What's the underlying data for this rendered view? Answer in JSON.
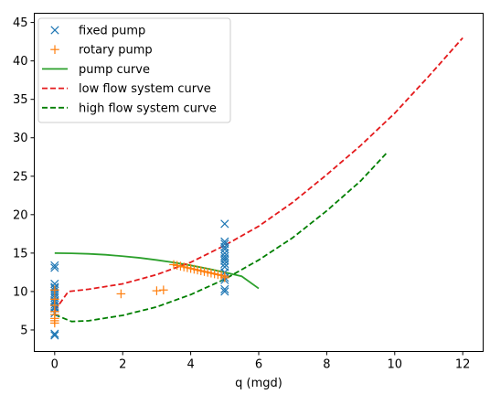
{
  "chart_data": {
    "type": "scatter",
    "title": "",
    "xlabel": "q (mgd)",
    "ylabel": "",
    "xlim": [
      -0.6,
      12.6
    ],
    "ylim": [
      2.2,
      46.2
    ],
    "xticks": [
      0,
      2,
      4,
      6,
      8,
      10,
      12
    ],
    "yticks": [
      5,
      10,
      15,
      20,
      25,
      30,
      35,
      40,
      45
    ],
    "grid": false,
    "legend_position": "top-left",
    "series": [
      {
        "name": "fixed pump",
        "kind": "scatter",
        "marker": "x",
        "color": "#1f77b4",
        "points": [
          [
            0,
            4.3
          ],
          [
            0,
            4.5
          ],
          [
            0,
            7.2
          ],
          [
            0,
            7.8
          ],
          [
            0,
            8.0
          ],
          [
            0,
            8.3
          ],
          [
            0,
            8.6
          ],
          [
            0,
            8.8
          ],
          [
            0,
            9.2
          ],
          [
            0,
            9.5
          ],
          [
            0,
            9.8
          ],
          [
            0,
            10.1
          ],
          [
            0,
            10.4
          ],
          [
            0,
            10.6
          ],
          [
            0,
            11.0
          ],
          [
            0,
            13.1
          ],
          [
            0,
            13.4
          ],
          [
            5,
            10.0
          ],
          [
            5,
            10.3
          ],
          [
            5,
            11.5
          ],
          [
            5,
            11.8
          ],
          [
            5,
            12.5
          ],
          [
            5,
            13.2
          ],
          [
            5,
            13.6
          ],
          [
            5,
            14.0
          ],
          [
            5,
            14.3
          ],
          [
            5,
            14.6
          ],
          [
            5,
            15.0
          ],
          [
            5,
            15.5
          ],
          [
            5,
            15.8
          ],
          [
            5,
            16.2
          ],
          [
            5,
            16.5
          ],
          [
            5,
            18.8
          ]
        ]
      },
      {
        "name": "rotary pump",
        "kind": "scatter",
        "marker": "+",
        "color": "#ff7f0e",
        "points": [
          [
            0,
            5.9
          ],
          [
            0,
            6.2
          ],
          [
            0,
            6.5
          ],
          [
            0,
            7.0
          ],
          [
            0,
            7.4
          ],
          [
            0,
            8.2
          ],
          [
            0,
            9.0
          ],
          [
            0,
            10.2
          ],
          [
            1.95,
            9.7
          ],
          [
            3.0,
            10.1
          ],
          [
            3.2,
            10.2
          ],
          [
            3.5,
            13.5
          ],
          [
            3.6,
            13.4
          ],
          [
            3.7,
            13.3
          ],
          [
            3.8,
            13.2
          ],
          [
            3.9,
            13.1
          ],
          [
            4.0,
            13.0
          ],
          [
            4.1,
            12.9
          ],
          [
            4.2,
            12.8
          ],
          [
            4.3,
            12.7
          ],
          [
            4.4,
            12.6
          ],
          [
            4.5,
            12.5
          ],
          [
            4.6,
            12.4
          ],
          [
            4.7,
            12.3
          ],
          [
            4.8,
            12.2
          ],
          [
            4.9,
            12.1
          ],
          [
            5.0,
            12.0
          ],
          [
            5.0,
            11.8
          ]
        ]
      },
      {
        "name": "pump curve",
        "kind": "line",
        "style": "solid",
        "color": "#2ca02c",
        "points": [
          [
            0,
            15.0
          ],
          [
            0.5,
            14.97
          ],
          [
            1,
            14.9
          ],
          [
            1.5,
            14.78
          ],
          [
            2,
            14.6
          ],
          [
            2.5,
            14.38
          ],
          [
            3,
            14.1
          ],
          [
            3.5,
            13.78
          ],
          [
            4,
            13.4
          ],
          [
            4.5,
            12.98
          ],
          [
            5,
            12.5
          ],
          [
            5.5,
            11.98
          ],
          [
            6,
            10.4
          ]
        ]
      },
      {
        "name": "low flow system curve",
        "kind": "line",
        "style": "dashed",
        "color": "#e41a1c",
        "points": [
          [
            0,
            7.5
          ],
          [
            0.4,
            10.0
          ],
          [
            1,
            10.3
          ],
          [
            2,
            11.0
          ],
          [
            3,
            12.2
          ],
          [
            4,
            13.8
          ],
          [
            5,
            16.0
          ],
          [
            6,
            18.5
          ],
          [
            7,
            21.6
          ],
          [
            8,
            25.2
          ],
          [
            9,
            29.0
          ],
          [
            10,
            33.2
          ],
          [
            11,
            38.0
          ],
          [
            12,
            43.0
          ]
        ]
      },
      {
        "name": "high flow system curve",
        "kind": "line",
        "style": "dashed",
        "color": "#007f00",
        "points": [
          [
            0,
            7.0
          ],
          [
            0.5,
            6.1
          ],
          [
            1,
            6.2
          ],
          [
            2,
            6.9
          ],
          [
            3,
            8.0
          ],
          [
            4,
            9.6
          ],
          [
            5,
            11.6
          ],
          [
            6,
            14.1
          ],
          [
            7,
            17.0
          ],
          [
            8,
            20.5
          ],
          [
            9,
            24.4
          ],
          [
            9.8,
            28.2
          ]
        ]
      }
    ]
  }
}
